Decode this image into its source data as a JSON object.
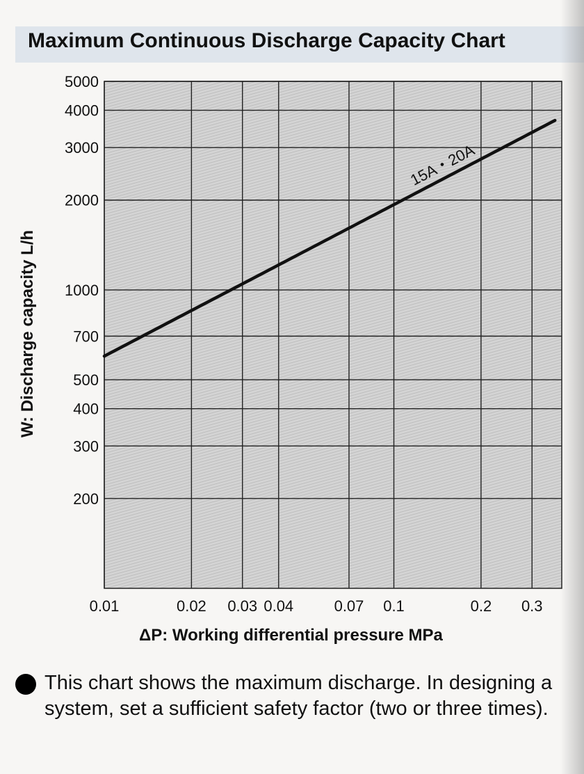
{
  "title": "Maximum Continuous Discharge Capacity Chart",
  "note": "This chart shows the maximum discharge. In designing a system, set a sufficient safety factor (two or three times).",
  "chart_data": {
    "type": "line",
    "title": "Maximum Continuous Discharge Capacity Chart",
    "xlabel": "ΔP: Working differential pressure MPa",
    "ylabel": "W: Discharge capacity L/h",
    "x_scale": "log",
    "y_scale": "log",
    "xlim": [
      0.01,
      0.38
    ],
    "ylim": [
      100,
      5000
    ],
    "x_ticks": [
      0.01,
      0.02,
      0.03,
      0.04,
      0.07,
      0.1,
      0.2,
      0.3
    ],
    "x_tick_labels": [
      "0.01",
      "0.02",
      "0.03",
      "0.04",
      "0.07",
      "0.1",
      "0.2",
      "0.3"
    ],
    "y_ticks": [
      200,
      300,
      400,
      500,
      700,
      1000,
      2000,
      3000,
      4000,
      5000
    ],
    "y_tick_labels": [
      "200",
      "300",
      "400",
      "500",
      "700",
      "1000",
      "2000",
      "3000",
      "4000",
      "5000"
    ],
    "grid": true,
    "series": [
      {
        "name": "15A・20A",
        "x": [
          0.01,
          0.36
        ],
        "y": [
          600,
          3700
        ]
      }
    ],
    "colors": {
      "line": "#111111",
      "grid": "#222222",
      "plot_bg": "#c9c9c9"
    }
  }
}
